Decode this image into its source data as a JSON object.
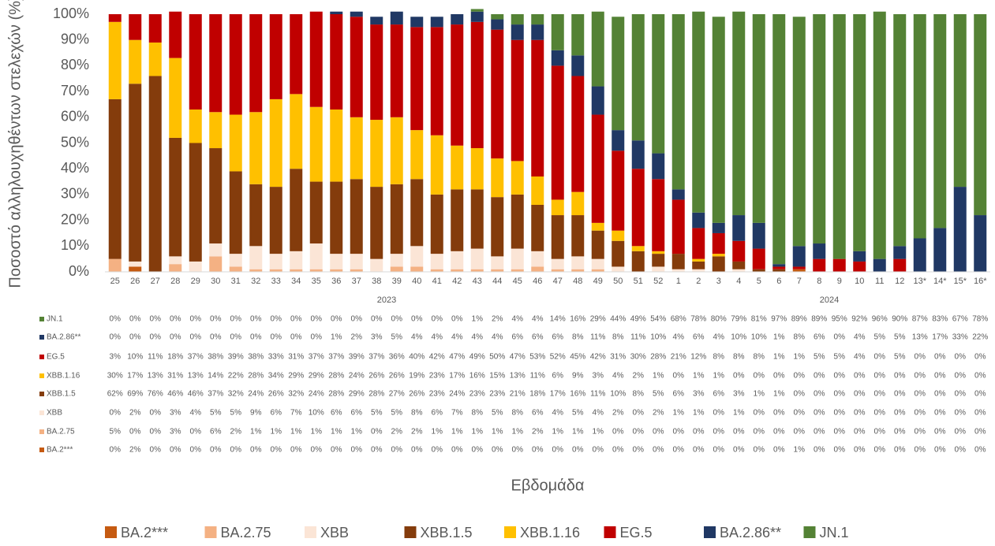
{
  "chart_data": {
    "type": "stacked-bar",
    "y_label": "Ποσοστό αλληλουχηθέντων στελεχών (%)",
    "x_label": "Εβδομάδα",
    "categories": [
      "25",
      "26",
      "27",
      "28",
      "29",
      "30",
      "31",
      "32",
      "33",
      "34",
      "35",
      "36",
      "37",
      "38",
      "39",
      "40",
      "41",
      "42",
      "43",
      "44",
      "45",
      "46",
      "47",
      "48",
      "49",
      "50",
      "51",
      "52",
      "1",
      "2",
      "3",
      "4",
      "5",
      "6",
      "7",
      "8",
      "9",
      "10",
      "11",
      "12",
      "13*",
      "14*",
      "15*",
      "16*"
    ],
    "category_groups": [
      {
        "label": "2023",
        "size": 28
      },
      {
        "label": "2024",
        "size": 16
      }
    ],
    "ylim": [
      0,
      100
    ],
    "yticks": [
      {
        "value": 0,
        "label": "0%"
      },
      {
        "value": 10,
        "label": "10%"
      },
      {
        "value": 20,
        "label": "20%"
      },
      {
        "value": 30,
        "label": "30%"
      },
      {
        "value": 40,
        "label": "40%"
      },
      {
        "value": 50,
        "label": "50%"
      },
      {
        "value": 60,
        "label": "60%"
      },
      {
        "value": 70,
        "label": "70%"
      },
      {
        "value": 80,
        "label": "80%"
      },
      {
        "value": 90,
        "label": "90%"
      },
      {
        "value": 100,
        "label": "100%"
      }
    ],
    "series": [
      {
        "name": "BA.2***",
        "color": "#c55a11",
        "values": [
          0,
          2,
          0,
          0,
          0,
          0,
          0,
          0,
          0,
          0,
          0,
          0,
          0,
          0,
          0,
          0,
          0,
          0,
          0,
          0,
          0,
          0,
          0,
          0,
          0,
          0,
          0,
          0,
          0,
          0,
          0,
          0,
          0,
          0,
          1,
          0,
          0,
          0,
          0,
          0,
          0,
          0,
          0,
          0
        ],
        "value_labels": [
          "0%",
          "2%",
          "0%",
          "0%",
          "0%",
          "0%",
          "0%",
          "0%",
          "0%",
          "0%",
          "0%",
          "0%",
          "0%",
          "0%",
          "0%",
          "0%",
          "0%",
          "0%",
          "0%",
          "0%",
          "0%",
          "0%",
          "0%",
          "0%",
          "0%",
          "0%",
          "0%",
          "0%",
          "0%",
          "0%",
          "0%",
          "0%",
          "0%",
          "0%",
          "1%",
          "0%",
          "0%",
          "0%",
          "0%",
          "0%",
          "0%",
          "0%",
          "0%",
          "0%"
        ]
      },
      {
        "name": "BA.2.75",
        "color": "#f4b183",
        "values": [
          5,
          0,
          0,
          3,
          0,
          6,
          2,
          1,
          1,
          1,
          1,
          1,
          1,
          0,
          2,
          2,
          1,
          1,
          1,
          1,
          1,
          2,
          1,
          1,
          1,
          0,
          0,
          0,
          0,
          0,
          0,
          0,
          0,
          0,
          0,
          0,
          0,
          0,
          0,
          0,
          0,
          0,
          0,
          0
        ],
        "value_labels": [
          "5%",
          "0%",
          "0%",
          "3%",
          "0%",
          "6%",
          "2%",
          "1%",
          "1%",
          "1%",
          "1%",
          "1%",
          "1%",
          "0%",
          "2%",
          "2%",
          "1%",
          "1%",
          "1%",
          "1%",
          "1%",
          "2%",
          "1%",
          "1%",
          "1%",
          "0%",
          "0%",
          "0%",
          "0%",
          "0%",
          "0%",
          "0%",
          "0%",
          "0%",
          "0%",
          "0%",
          "0%",
          "0%",
          "0%",
          "0%",
          "0%",
          "0%",
          "0%",
          "0%"
        ]
      },
      {
        "name": "XBB",
        "color": "#fbe5d6",
        "values": [
          0,
          2,
          0,
          3,
          4,
          5,
          5,
          9,
          6,
          7,
          10,
          6,
          6,
          5,
          5,
          8,
          6,
          7,
          8,
          5,
          8,
          6,
          4,
          5,
          4,
          2,
          0,
          2,
          1,
          1,
          0,
          1,
          0,
          0,
          0,
          0,
          0,
          0,
          0,
          0,
          0,
          0,
          0,
          0
        ],
        "value_labels": [
          "0%",
          "2%",
          "0%",
          "3%",
          "4%",
          "5%",
          "5%",
          "9%",
          "6%",
          "7%",
          "10%",
          "6%",
          "6%",
          "5%",
          "5%",
          "8%",
          "6%",
          "7%",
          "8%",
          "5%",
          "8%",
          "6%",
          "4%",
          "5%",
          "4%",
          "2%",
          "0%",
          "2%",
          "1%",
          "1%",
          "0%",
          "1%",
          "0%",
          "0%",
          "0%",
          "0%",
          "0%",
          "0%",
          "0%",
          "0%",
          "0%",
          "0%",
          "0%",
          "0%"
        ]
      },
      {
        "name": "XBB.1.5",
        "color": "#843c0c",
        "values": [
          62,
          69,
          76,
          46,
          46,
          37,
          32,
          24,
          26,
          32,
          24,
          28,
          29,
          28,
          27,
          26,
          23,
          24,
          23,
          23,
          21,
          18,
          17,
          16,
          11,
          10,
          8,
          5,
          6,
          3,
          6,
          3,
          1,
          1,
          0,
          0,
          0,
          0,
          0,
          0,
          0,
          0,
          0,
          0
        ],
        "value_labels": [
          "62%",
          "69%",
          "76%",
          "46%",
          "46%",
          "37%",
          "32%",
          "24%",
          "26%",
          "32%",
          "24%",
          "28%",
          "29%",
          "28%",
          "27%",
          "26%",
          "23%",
          "24%",
          "23%",
          "23%",
          "21%",
          "18%",
          "17%",
          "16%",
          "11%",
          "10%",
          "8%",
          "5%",
          "6%",
          "3%",
          "6%",
          "3%",
          "1%",
          "1%",
          "0%",
          "0%",
          "0%",
          "0%",
          "0%",
          "0%",
          "0%",
          "0%",
          "0%",
          "0%"
        ]
      },
      {
        "name": "XBB.1.16",
        "color": "#ffc000",
        "values": [
          30,
          17,
          13,
          31,
          13,
          14,
          22,
          28,
          34,
          29,
          29,
          28,
          24,
          26,
          26,
          19,
          23,
          17,
          16,
          15,
          13,
          11,
          6,
          9,
          3,
          4,
          2,
          1,
          0,
          1,
          1,
          0,
          0,
          0,
          0,
          0,
          0,
          0,
          0,
          0,
          0,
          0,
          0,
          0
        ],
        "value_labels": [
          "30%",
          "17%",
          "13%",
          "31%",
          "13%",
          "14%",
          "22%",
          "28%",
          "34%",
          "29%",
          "29%",
          "28%",
          "24%",
          "26%",
          "26%",
          "19%",
          "23%",
          "17%",
          "16%",
          "15%",
          "13%",
          "11%",
          "6%",
          "9%",
          "3%",
          "4%",
          "2%",
          "1%",
          "0%",
          "1%",
          "1%",
          "0%",
          "0%",
          "0%",
          "0%",
          "0%",
          "0%",
          "0%",
          "0%",
          "0%",
          "0%",
          "0%",
          "0%",
          "0%"
        ]
      },
      {
        "name": "EG.5",
        "color": "#c00000",
        "values": [
          3,
          10,
          11,
          18,
          37,
          38,
          39,
          38,
          33,
          31,
          37,
          37,
          39,
          37,
          36,
          40,
          42,
          47,
          49,
          50,
          47,
          53,
          52,
          45,
          42,
          31,
          30,
          28,
          21,
          12,
          8,
          8,
          8,
          1,
          1,
          5,
          5,
          4,
          0,
          5,
          0,
          0,
          0,
          0
        ],
        "value_labels": [
          "3%",
          "10%",
          "11%",
          "18%",
          "37%",
          "38%",
          "39%",
          "38%",
          "33%",
          "31%",
          "37%",
          "37%",
          "39%",
          "37%",
          "36%",
          "40%",
          "42%",
          "47%",
          "49%",
          "50%",
          "47%",
          "53%",
          "52%",
          "45%",
          "42%",
          "31%",
          "30%",
          "28%",
          "21%",
          "12%",
          "8%",
          "8%",
          "8%",
          "1%",
          "1%",
          "5%",
          "5%",
          "4%",
          "0%",
          "5%",
          "0%",
          "0%",
          "0%",
          "0%"
        ]
      },
      {
        "name": "BA.2.86**",
        "color": "#203864",
        "values": [
          0,
          0,
          0,
          0,
          0,
          0,
          0,
          0,
          0,
          0,
          0,
          1,
          2,
          3,
          5,
          4,
          4,
          4,
          4,
          4,
          6,
          6,
          6,
          8,
          11,
          8,
          11,
          10,
          4,
          6,
          4,
          10,
          10,
          1,
          8,
          6,
          0,
          4,
          5,
          5,
          13,
          17,
          33,
          22
        ],
        "value_labels": [
          "0%",
          "0%",
          "0%",
          "0%",
          "0%",
          "0%",
          "0%",
          "0%",
          "0%",
          "0%",
          "0%",
          "1%",
          "2%",
          "3%",
          "5%",
          "4%",
          "4%",
          "4%",
          "4%",
          "4%",
          "6%",
          "6%",
          "6%",
          "8%",
          "11%",
          "8%",
          "11%",
          "10%",
          "4%",
          "6%",
          "4%",
          "10%",
          "10%",
          "1%",
          "8%",
          "6%",
          "0%",
          "4%",
          "5%",
          "5%",
          "13%",
          "17%",
          "33%",
          "22%"
        ]
      },
      {
        "name": "JN.1",
        "color": "#548235",
        "values": [
          0,
          0,
          0,
          0,
          0,
          0,
          0,
          0,
          0,
          0,
          0,
          0,
          0,
          0,
          0,
          0,
          0,
          0,
          1,
          2,
          4,
          4,
          14,
          16,
          29,
          44,
          49,
          54,
          68,
          78,
          80,
          79,
          81,
          97,
          89,
          89,
          95,
          92,
          96,
          90,
          87,
          83,
          67,
          78
        ],
        "value_labels": [
          "0%",
          "0%",
          "0%",
          "0%",
          "0%",
          "0%",
          "0%",
          "0%",
          "0%",
          "0%",
          "0%",
          "0%",
          "0%",
          "0%",
          "0%",
          "0%",
          "0%",
          "0%",
          "1%",
          "2%",
          "4%",
          "4%",
          "14%",
          "16%",
          "29%",
          "44%",
          "49%",
          "54%",
          "68%",
          "78%",
          "80%",
          "79%",
          "81%",
          "97%",
          "89%",
          "89%",
          "95%",
          "92%",
          "96%",
          "90%",
          "87%",
          "83%",
          "67%",
          "78%"
        ]
      }
    ]
  }
}
